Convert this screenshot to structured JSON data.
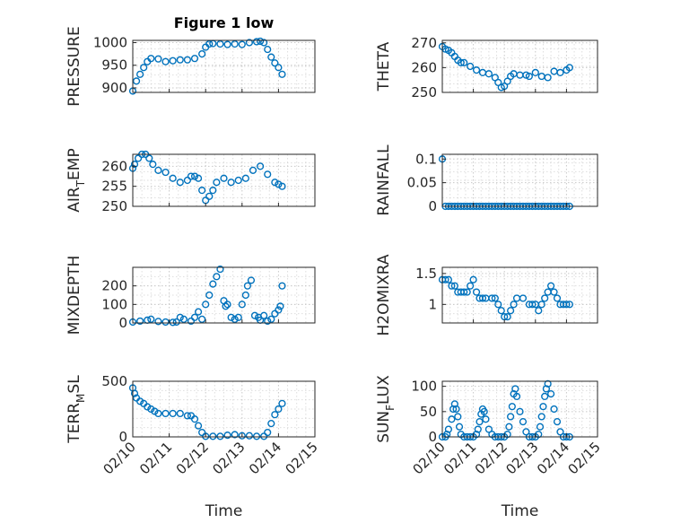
{
  "figure_title": "Figure 1 low",
  "x_axis_label": "Time",
  "colors": {
    "marker": "#0072bd",
    "axis": "#262626",
    "grid": "#c8c8c8"
  },
  "chart_data": [
    {
      "id": "pressure",
      "type": "scatter",
      "ylabel": "PRESSURE",
      "ylabel_sub": "",
      "xlim": [
        10,
        15
      ],
      "ylim": [
        890,
        1005
      ],
      "yticks": [
        900,
        950,
        1000
      ],
      "ytick_labels": [
        "900",
        "950",
        "1000"
      ],
      "xtick_labels": [],
      "show_xlabel": false,
      "title": "Figure 1 low",
      "x": [
        10.0,
        10.1,
        10.2,
        10.3,
        10.4,
        10.5,
        10.7,
        10.9,
        11.1,
        11.3,
        11.5,
        11.7,
        11.9,
        12.0,
        12.1,
        12.2,
        12.4,
        12.6,
        12.8,
        13.0,
        13.2,
        13.4,
        13.5,
        13.6,
        13.7,
        13.8,
        13.9,
        14.0,
        14.1
      ],
      "y": [
        893,
        915,
        930,
        945,
        958,
        965,
        964,
        958,
        960,
        962,
        962,
        965,
        975,
        990,
        997,
        998,
        997,
        996,
        997,
        996,
        1000,
        1002,
        1003,
        1000,
        985,
        968,
        955,
        945,
        930
      ]
    },
    {
      "id": "theta",
      "type": "scatter",
      "ylabel": "THETA",
      "ylabel_sub": "",
      "xlim": [
        10,
        15
      ],
      "ylim": [
        250,
        271
      ],
      "yticks": [
        250,
        260,
        270
      ],
      "ytick_labels": [
        "250",
        "260",
        "270"
      ],
      "xtick_labels": [],
      "show_xlabel": false,
      "x": [
        10.0,
        10.1,
        10.2,
        10.3,
        10.4,
        10.5,
        10.6,
        10.7,
        10.9,
        11.1,
        11.3,
        11.5,
        11.7,
        11.8,
        11.9,
        12.0,
        12.1,
        12.2,
        12.3,
        12.5,
        12.7,
        12.8,
        13.0,
        13.2,
        13.4,
        13.6,
        13.8,
        14.0,
        14.1
      ],
      "y": [
        268.5,
        267.5,
        267,
        266,
        264.5,
        263,
        262,
        262,
        260.5,
        259,
        258,
        257.5,
        256,
        254,
        252,
        252.5,
        254.5,
        256.5,
        257.5,
        257,
        257,
        256.5,
        258,
        256.5,
        256,
        258.5,
        258,
        259,
        260
      ]
    },
    {
      "id": "air_temp",
      "type": "scatter",
      "ylabel": "AIR",
      "ylabel_sub": "T",
      "ylabel_suffix": "EMP",
      "xlim": [
        10,
        15
      ],
      "ylim": [
        250,
        263
      ],
      "yticks": [
        250,
        255,
        260
      ],
      "ytick_labels": [
        "250",
        "255",
        "260"
      ],
      "xtick_labels": [],
      "show_xlabel": false,
      "x": [
        10.0,
        10.05,
        10.15,
        10.25,
        10.35,
        10.45,
        10.55,
        10.7,
        10.9,
        11.1,
        11.3,
        11.5,
        11.6,
        11.7,
        11.8,
        11.9,
        12.0,
        12.1,
        12.2,
        12.3,
        12.5,
        12.7,
        12.9,
        13.1,
        13.3,
        13.5,
        13.7,
        13.9,
        14.0,
        14.1
      ],
      "y": [
        259.5,
        260.5,
        262,
        263,
        263,
        262,
        260.5,
        259,
        258.5,
        257,
        256,
        256.5,
        257.5,
        257.5,
        257,
        254,
        251.5,
        252.5,
        254,
        256,
        257,
        256,
        256.5,
        257,
        259,
        260,
        258,
        256,
        255.5,
        255
      ]
    },
    {
      "id": "rainfall",
      "type": "scatter",
      "ylabel": "RAINFALL",
      "ylabel_sub": "",
      "xlim": [
        10,
        15
      ],
      "ylim": [
        0,
        0.11
      ],
      "yticks": [
        0,
        0.05,
        0.1
      ],
      "ytick_labels": [
        "0",
        "0.05",
        "0.1"
      ],
      "xtick_labels": [],
      "show_xlabel": false,
      "x": [
        10.0,
        10.1,
        10.2,
        10.3,
        10.4,
        10.5,
        10.6,
        10.7,
        10.8,
        10.9,
        11.0,
        11.1,
        11.2,
        11.3,
        11.4,
        11.5,
        11.6,
        11.7,
        11.8,
        11.9,
        12.0,
        12.1,
        12.2,
        12.3,
        12.4,
        12.5,
        12.6,
        12.7,
        12.8,
        12.9,
        13.0,
        13.1,
        13.2,
        13.3,
        13.4,
        13.5,
        13.6,
        13.7,
        13.8,
        13.9,
        14.0,
        14.1
      ],
      "y": [
        0.1,
        0,
        0,
        0,
        0,
        0,
        0,
        0,
        0,
        0,
        0,
        0,
        0,
        0,
        0,
        0,
        0,
        0,
        0,
        0,
        0,
        0,
        0,
        0,
        0,
        0,
        0,
        0,
        0,
        0,
        0,
        0,
        0,
        0,
        0,
        0,
        0,
        0,
        0,
        0,
        0,
        0
      ]
    },
    {
      "id": "mixdepth",
      "type": "scatter",
      "ylabel": "MIXDEPTH",
      "ylabel_sub": "",
      "xlim": [
        10,
        15
      ],
      "ylim": [
        0,
        300
      ],
      "yticks": [
        0,
        100,
        200
      ],
      "ytick_labels": [
        "0",
        "100",
        "200"
      ],
      "xtick_labels": [],
      "show_xlabel": false,
      "x": [
        10.0,
        10.2,
        10.4,
        10.5,
        10.7,
        10.9,
        11.1,
        11.2,
        11.3,
        11.4,
        11.6,
        11.7,
        11.8,
        11.9,
        12.0,
        12.1,
        12.2,
        12.3,
        12.4,
        12.5,
        12.55,
        12.6,
        12.7,
        12.8,
        12.9,
        13.0,
        13.1,
        13.15,
        13.25,
        13.35,
        13.45,
        13.5,
        13.6,
        13.7,
        13.8,
        13.9,
        14.0,
        14.05,
        14.1
      ],
      "y": [
        5,
        10,
        15,
        20,
        8,
        5,
        3,
        5,
        30,
        20,
        10,
        30,
        60,
        20,
        100,
        150,
        210,
        250,
        290,
        120,
        90,
        100,
        30,
        20,
        30,
        100,
        150,
        200,
        230,
        40,
        30,
        15,
        40,
        10,
        20,
        50,
        70,
        90,
        200
      ]
    },
    {
      "id": "h2omixra",
      "type": "scatter",
      "ylabel": "H2OMIXRA",
      "ylabel_sub": "",
      "xlim": [
        10,
        15
      ],
      "ylim": [
        0.7,
        1.6
      ],
      "yticks": [
        1,
        1.5
      ],
      "ytick_labels": [
        "1",
        "1.5"
      ],
      "xtick_labels": [],
      "show_xlabel": false,
      "x": [
        10.0,
        10.1,
        10.2,
        10.3,
        10.4,
        10.5,
        10.6,
        10.7,
        10.8,
        10.9,
        11.0,
        11.1,
        11.2,
        11.3,
        11.4,
        11.6,
        11.7,
        11.8,
        11.9,
        12.0,
        12.1,
        12.2,
        12.3,
        12.4,
        12.6,
        12.8,
        12.9,
        13.0,
        13.1,
        13.2,
        13.3,
        13.4,
        13.5,
        13.6,
        13.7,
        13.8,
        13.9,
        14.0,
        14.1
      ],
      "y": [
        1.4,
        1.4,
        1.4,
        1.3,
        1.3,
        1.2,
        1.2,
        1.2,
        1.2,
        1.3,
        1.4,
        1.2,
        1.1,
        1.1,
        1.1,
        1.1,
        1.1,
        1.0,
        0.9,
        0.8,
        0.8,
        0.9,
        1.0,
        1.1,
        1.1,
        1.0,
        1.0,
        1.0,
        0.9,
        1.0,
        1.1,
        1.2,
        1.3,
        1.2,
        1.1,
        1.0,
        1.0,
        1.0,
        1.0
      ]
    },
    {
      "id": "terr_msl",
      "type": "scatter",
      "ylabel": "TERR",
      "ylabel_sub": "M",
      "ylabel_suffix": "SL",
      "xlim": [
        10,
        15
      ],
      "ylim": [
        0,
        500
      ],
      "yticks": [
        0,
        500
      ],
      "ytick_labels": [
        "0",
        "500"
      ],
      "xtick_labels": [
        "02/10",
        "02/11",
        "02/12",
        "02/13",
        "02/14",
        "02/15"
      ],
      "show_xlabel": true,
      "x": [
        10.0,
        10.05,
        10.1,
        10.2,
        10.3,
        10.4,
        10.5,
        10.6,
        10.7,
        10.9,
        11.1,
        11.3,
        11.5,
        11.6,
        11.7,
        11.8,
        11.9,
        12.0,
        12.2,
        12.4,
        12.6,
        12.8,
        13.0,
        13.2,
        13.4,
        13.6,
        13.7,
        13.8,
        13.9,
        14.0,
        14.1
      ],
      "y": [
        440,
        390,
        350,
        320,
        300,
        270,
        250,
        230,
        210,
        210,
        210,
        210,
        190,
        190,
        160,
        100,
        40,
        5,
        5,
        5,
        15,
        20,
        10,
        10,
        5,
        5,
        40,
        120,
        200,
        250,
        300
      ]
    },
    {
      "id": "sun_flux",
      "type": "scatter",
      "ylabel": "SUN",
      "ylabel_sub": "F",
      "ylabel_suffix": "LUX",
      "xlim": [
        10,
        15
      ],
      "ylim": [
        0,
        110
      ],
      "yticks": [
        0,
        50,
        100
      ],
      "ytick_labels": [
        "0",
        "50",
        "100"
      ],
      "xtick_labels": [
        "02/10",
        "02/11",
        "02/12",
        "02/13",
        "02/14",
        "02/15"
      ],
      "show_xlabel": true,
      "x": [
        10.0,
        10.1,
        10.15,
        10.2,
        10.3,
        10.35,
        10.4,
        10.45,
        10.5,
        10.55,
        10.6,
        10.7,
        10.8,
        10.9,
        11.0,
        11.1,
        11.15,
        11.2,
        11.25,
        11.3,
        11.35,
        11.4,
        11.5,
        11.6,
        11.7,
        11.8,
        11.9,
        12.0,
        12.1,
        12.15,
        12.2,
        12.25,
        12.3,
        12.35,
        12.4,
        12.5,
        12.6,
        12.7,
        12.8,
        12.9,
        13.0,
        13.1,
        13.15,
        13.2,
        13.25,
        13.3,
        13.35,
        13.4,
        13.5,
        13.6,
        13.7,
        13.8,
        13.9,
        14.0,
        14.1
      ],
      "y": [
        0,
        0,
        5,
        15,
        35,
        55,
        65,
        55,
        40,
        20,
        5,
        0,
        0,
        0,
        0,
        5,
        15,
        30,
        45,
        55,
        50,
        35,
        15,
        5,
        0,
        0,
        0,
        0,
        5,
        20,
        40,
        60,
        85,
        95,
        80,
        50,
        30,
        10,
        0,
        0,
        0,
        5,
        20,
        40,
        60,
        80,
        95,
        105,
        85,
        55,
        30,
        10,
        0,
        0,
        0
      ]
    }
  ]
}
